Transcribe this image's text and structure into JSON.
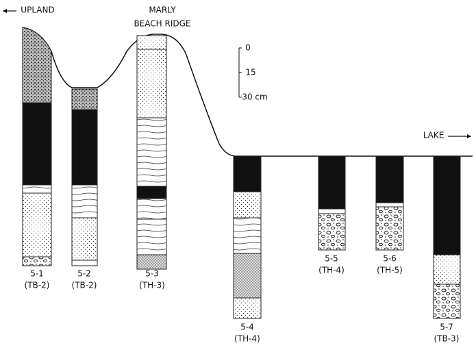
{
  "labels": {
    "upland": "UPLAND",
    "ridge": [
      "MARLY",
      "BEACH RIDGE"
    ],
    "lake": "LAKE"
  },
  "scale": [
    "0",
    "15",
    "30 cm"
  ],
  "columns": [
    {
      "id": "5-1",
      "site": "(TB-2)"
    },
    {
      "id": "5-2",
      "site": "(TB-2)"
    },
    {
      "id": "5-3",
      "site": "(TH-3)"
    },
    {
      "id": "5-4",
      "site": "(TH-4)"
    },
    {
      "id": "5-5",
      "site": "(TH-4)"
    },
    {
      "id": "5-6",
      "site": "(TH-5)"
    },
    {
      "id": "5-7",
      "site": "(TB-3)"
    }
  ]
}
